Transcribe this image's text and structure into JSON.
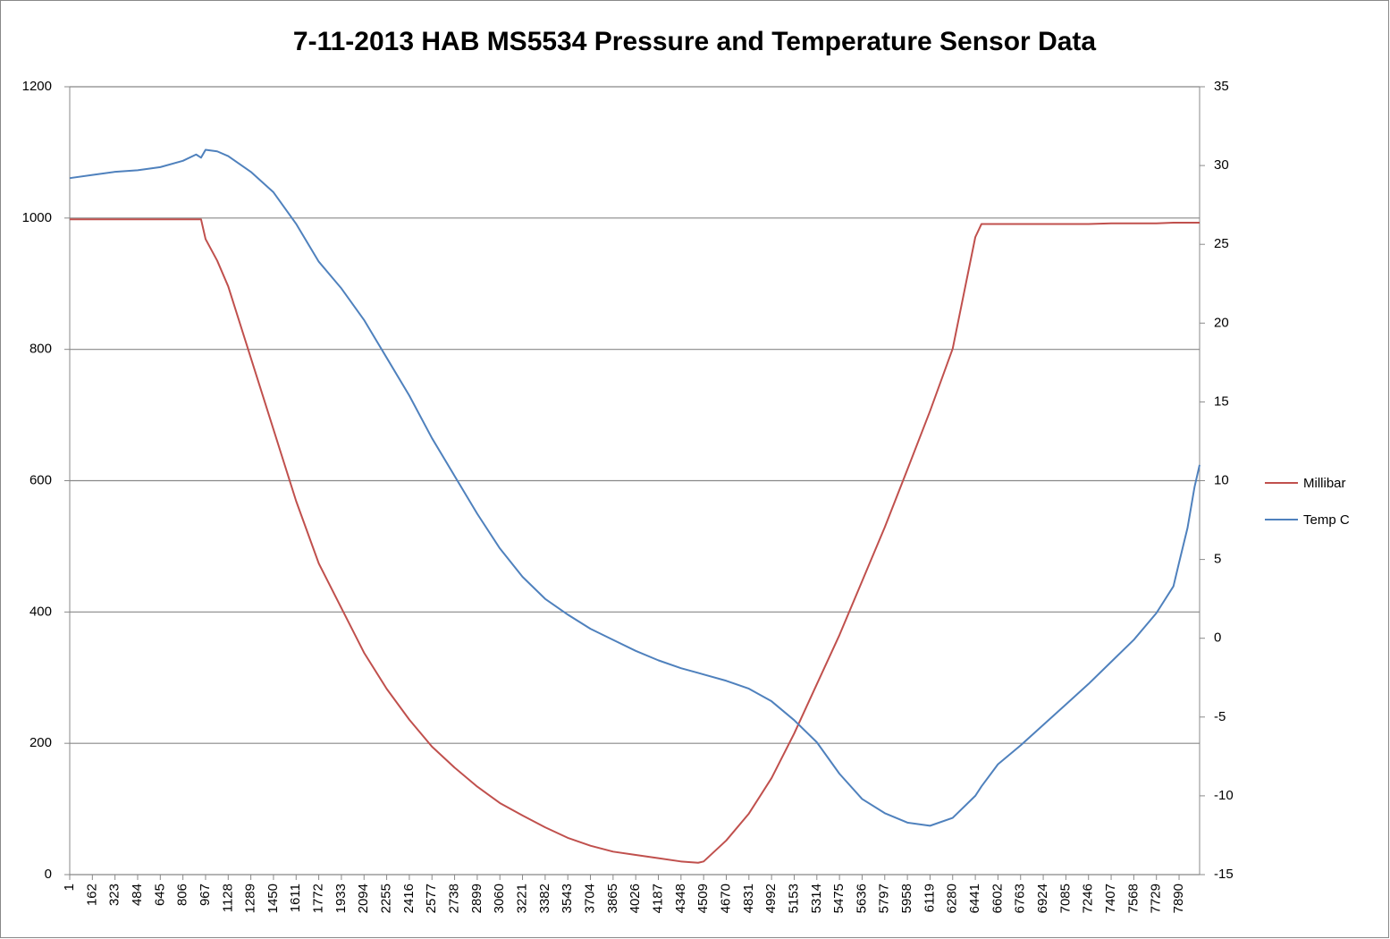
{
  "chart_data": {
    "type": "line",
    "title": "7-11-2013 HAB MS5534 Pressure and Temperature Sensor Data",
    "x": [
      1,
      162,
      323,
      484,
      645,
      806,
      900,
      935,
      967,
      1050,
      1128,
      1289,
      1450,
      1611,
      1772,
      1933,
      2094,
      2255,
      2416,
      2577,
      2738,
      2899,
      3060,
      3221,
      3382,
      3543,
      3704,
      3865,
      4026,
      4187,
      4348,
      4470,
      4509,
      4670,
      4831,
      4992,
      5153,
      5314,
      5475,
      5636,
      5797,
      5958,
      6119,
      6280,
      6441,
      6485,
      6602,
      6763,
      6924,
      7085,
      7246,
      7407,
      7568,
      7729,
      7850,
      7890,
      7950,
      8000,
      8036
    ],
    "series": [
      {
        "name": "Millibar",
        "color": "#c0504d",
        "axis": "y",
        "values": [
          998,
          998,
          998,
          998,
          998,
          998,
          998,
          998,
          968,
          935,
          896,
          787,
          678,
          569,
          474,
          406,
          338,
          283,
          236,
          195,
          163,
          134,
          109,
          90,
          72,
          56,
          44,
          35,
          30,
          25,
          20,
          18,
          20,
          52,
          93,
          147,
          215,
          290,
          365,
          447,
          529,
          617,
          706,
          801,
          971,
          991,
          991,
          991,
          991,
          991,
          991,
          992,
          992,
          992,
          993,
          993,
          993,
          993,
          993
        ]
      },
      {
        "name": "Temp C",
        "color": "#4f81bd",
        "axis": "y2",
        "values": [
          29.2,
          29.4,
          29.6,
          29.7,
          29.9,
          30.3,
          30.7,
          30.5,
          31.0,
          30.9,
          30.6,
          29.6,
          28.3,
          26.3,
          23.9,
          22.2,
          20.2,
          17.8,
          15.4,
          12.7,
          10.3,
          7.9,
          5.7,
          3.9,
          2.5,
          1.5,
          0.6,
          -0.1,
          -0.8,
          -1.4,
          -1.9,
          -2.2,
          -2.3,
          -2.7,
          -3.2,
          -4.0,
          -5.2,
          -6.6,
          -8.6,
          -10.2,
          -11.1,
          -11.7,
          -11.9,
          -11.4,
          -10.0,
          -9.4,
          -8.0,
          -6.8,
          -5.5,
          -4.2,
          -2.9,
          -1.5,
          -0.1,
          1.6,
          3.3,
          4.8,
          7.0,
          9.6,
          11.0
        ]
      }
    ],
    "xlim": [
      1,
      8036
    ],
    "xticks": [
      1,
      162,
      323,
      484,
      645,
      806,
      967,
      1128,
      1289,
      1450,
      1611,
      1772,
      1933,
      2094,
      2255,
      2416,
      2577,
      2738,
      2899,
      3060,
      3221,
      3382,
      3543,
      3704,
      3865,
      4026,
      4187,
      4348,
      4509,
      4670,
      4831,
      4992,
      5153,
      5314,
      5475,
      5636,
      5797,
      5958,
      6119,
      6280,
      6441,
      6602,
      6763,
      6924,
      7085,
      7246,
      7407,
      7568,
      7729,
      7890
    ],
    "ylim": [
      0,
      1200
    ],
    "yticks": [
      0,
      200,
      400,
      600,
      800,
      1000,
      1200
    ],
    "y2lim": [
      -15,
      35
    ],
    "y2ticks": [
      -15,
      -10,
      -5,
      0,
      5,
      10,
      15,
      20,
      25,
      30,
      35
    ],
    "grid": true,
    "legend": "right"
  }
}
